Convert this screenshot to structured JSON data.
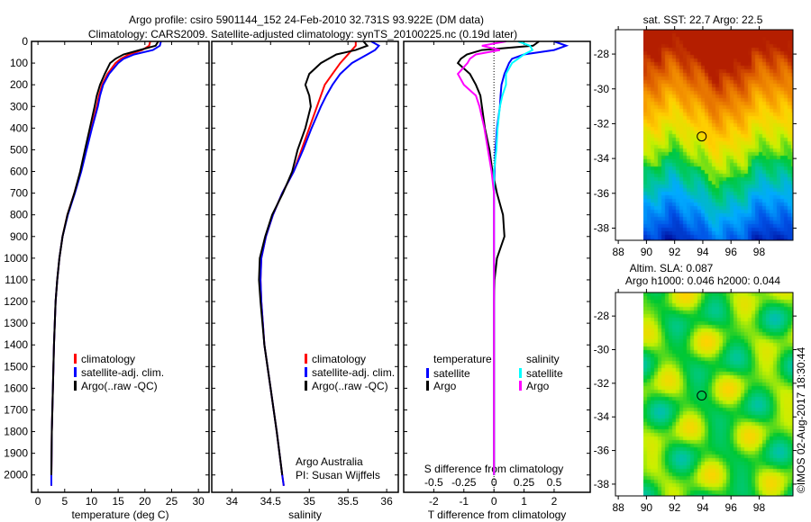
{
  "header": {
    "title_line1": "Argo profile: csiro 5901144_152 24-Feb-2010 32.731S 93.922E (DM data)",
    "title_line2": "Climatology: CARS2009. Satellite-adjusted climatology: synTS_20100225.nc (0.19d later)"
  },
  "footer": {
    "credit": "Argo Australia",
    "pi": "PI: Susan Wijffels",
    "stamp": "©IMOS 02-Aug-2017 18:30:44"
  },
  "colors": {
    "climatology": "#ff0000",
    "satellite": "#0000ff",
    "argo": "#000000",
    "sal_sat": "#00ffff",
    "sal_argo": "#ff00ff"
  },
  "chart_data": [
    {
      "type": "line",
      "name": "temperature",
      "xlabel": "temperature (deg C)",
      "ylabel": "",
      "xlim": [
        -1.2,
        32
      ],
      "ylim": [
        0,
        2080
      ],
      "xticks": [
        0,
        5,
        10,
        15,
        20,
        25,
        30
      ],
      "yticks": [
        0,
        100,
        200,
        300,
        400,
        500,
        600,
        700,
        800,
        900,
        1000,
        1100,
        1200,
        1300,
        1400,
        1500,
        1600,
        1700,
        1800,
        1900,
        2000
      ],
      "depth": [
        0,
        20,
        40,
        60,
        80,
        100,
        150,
        200,
        250,
        300,
        400,
        500,
        600,
        700,
        800,
        900,
        1000,
        1100,
        1200,
        1400,
        1600,
        1800,
        2000,
        2050
      ],
      "legend": [
        "climatology",
        "satellite-adj. clim.",
        "Argo(..raw -QC)"
      ],
      "series": [
        {
          "name": "climatology",
          "color": "#ff0000",
          "values": [
            21,
            20.8,
            19.5,
            17,
            15.5,
            14.5,
            13,
            12,
            11.4,
            11,
            10,
            9,
            8,
            6.8,
            5.5,
            4.6,
            4,
            3.6,
            3.3,
            3,
            2.8,
            2.6,
            2.5,
            2.5
          ]
        },
        {
          "name": "satellite-adj. clim.",
          "color": "#0000ff",
          "values": [
            23,
            22.8,
            21.5,
            18,
            16,
            15,
            13.3,
            12.2,
            11.6,
            11.2,
            10.1,
            9.1,
            8.1,
            6.9,
            5.6,
            4.6,
            4,
            3.6,
            3.3,
            3,
            2.8,
            2.6,
            2.5,
            2.5
          ]
        },
        {
          "name": "Argo(..raw -QC)",
          "color": "#000000",
          "values": [
            22.5,
            22,
            19,
            16,
            14.5,
            13.5,
            12.5,
            11.6,
            11,
            10.6,
            9.7,
            8.8,
            7.9,
            6.8,
            5.5,
            4.6,
            4,
            3.6,
            3.3,
            3,
            2.8,
            2.6,
            2.5,
            null
          ]
        }
      ]
    },
    {
      "type": "line",
      "name": "salinity",
      "xlabel": "salinity",
      "xlim": [
        33.74,
        36.15
      ],
      "ylim": [
        0,
        2080
      ],
      "xticks": [
        34,
        34.5,
        35,
        35.5,
        36
      ],
      "depth": [
        0,
        20,
        40,
        60,
        80,
        100,
        150,
        200,
        250,
        300,
        400,
        500,
        600,
        700,
        800,
        900,
        1000,
        1100,
        1200,
        1400,
        1600,
        1800,
        2000,
        2050
      ],
      "legend": [
        "climatology",
        "satellite-adj. clim.",
        "Argo(..raw -QC)"
      ],
      "series": [
        {
          "name": "climatology",
          "color": "#ff0000",
          "values": [
            35.6,
            35.6,
            35.55,
            35.5,
            35.45,
            35.4,
            35.3,
            35.2,
            35.15,
            35.1,
            35.0,
            34.9,
            34.8,
            34.65,
            34.53,
            34.44,
            34.38,
            34.37,
            34.38,
            34.42,
            34.5,
            34.58,
            34.65,
            34.67
          ]
        },
        {
          "name": "satellite-adj. clim.",
          "color": "#0000ff",
          "values": [
            35.8,
            35.9,
            35.85,
            35.75,
            35.65,
            35.55,
            35.4,
            35.3,
            35.22,
            35.15,
            35.03,
            34.92,
            34.8,
            34.65,
            34.53,
            34.44,
            34.38,
            34.37,
            34.38,
            34.42,
            34.5,
            34.58,
            34.65,
            34.67
          ]
        },
        {
          "name": "Argo(..raw -QC)",
          "color": "#000000",
          "values": [
            35.7,
            35.75,
            35.6,
            35.35,
            35.25,
            35.15,
            35.0,
            34.95,
            35.0,
            35.02,
            34.95,
            34.85,
            34.78,
            34.66,
            34.52,
            34.43,
            34.36,
            34.35,
            34.37,
            34.42,
            34.5,
            34.58,
            34.65,
            null
          ]
        }
      ]
    },
    {
      "type": "line",
      "name": "differences",
      "xlabel": "T difference from climatology",
      "x2label": "S difference from climatology",
      "xlim": [
        -3,
        3.2
      ],
      "ylim": [
        0,
        2080
      ],
      "xticks": [
        -2,
        -1,
        0,
        1,
        2
      ],
      "xtick_labels": [
        "-2",
        "-1",
        "0",
        "1",
        "2"
      ],
      "x2ticks": [
        -0.5,
        -0.25,
        0,
        0.25,
        0.5
      ],
      "x2tick_labels": [
        "-0.5",
        "-0.25",
        "0",
        "0.25",
        "0.5"
      ],
      "depth": [
        0,
        20,
        40,
        60,
        80,
        100,
        150,
        200,
        250,
        300,
        400,
        500,
        600,
        700,
        800,
        900,
        1000,
        1100,
        1200,
        1400,
        1600,
        1800,
        2000
      ],
      "legend_temperature": {
        "title": "temperature",
        "items": [
          "satellite",
          "Argo"
        ]
      },
      "legend_salinity": {
        "title": "salinity",
        "items": [
          "satellite",
          "Argo"
        ]
      },
      "series": [
        {
          "name": "T satellite",
          "color": "#0000ff",
          "values": [
            2,
            2.4,
            2.0,
            1.0,
            0.6,
            0.5,
            0.35,
            0.25,
            0.22,
            0.2,
            0.1,
            0.05,
            0.02,
            0,
            0,
            0,
            0,
            0,
            0,
            0,
            0,
            0,
            0
          ]
        },
        {
          "name": "T Argo",
          "color": "#000000",
          "values": [
            1.5,
            1.3,
            -0.4,
            -0.9,
            -1.1,
            -1.2,
            -0.8,
            -0.6,
            -0.45,
            -0.4,
            -0.3,
            -0.15,
            -0.05,
            0.1,
            0.3,
            0.35,
            0.1,
            0.02,
            0,
            0,
            0,
            0,
            0
          ]
        },
        {
          "name": "S satellite",
          "color": "#00ffff",
          "values": [
            0.2,
            0.3,
            0.32,
            0.25,
            0.2,
            0.15,
            0.1,
            0.1,
            0.07,
            0.05,
            0.03,
            0.02,
            0,
            0,
            0,
            0,
            0,
            0,
            0,
            0,
            0,
            0,
            0
          ]
        },
        {
          "name": "S Argo",
          "color": "#ff00ff",
          "values": [
            0.1,
            -0.1,
            0.05,
            -0.15,
            -0.2,
            -0.22,
            -0.3,
            -0.25,
            -0.15,
            -0.12,
            -0.08,
            -0.05,
            -0.02,
            0,
            0,
            0,
            0,
            0,
            0,
            0,
            0,
            0,
            0
          ]
        }
      ]
    },
    {
      "type": "heatmap",
      "name": "sst-map",
      "title": "sat. SST: 22.7 Argo: 22.5",
      "xlim": [
        87.8,
        100.4
      ],
      "ylim": [
        -38.7,
        -26.6
      ],
      "xticks": [
        88,
        90,
        92,
        94,
        96,
        98
      ],
      "yticks": [
        -28,
        -30,
        -32,
        -34,
        -36,
        -38
      ],
      "marker": {
        "lon": 93.922,
        "lat": -32.731
      }
    },
    {
      "type": "heatmap",
      "name": "sla-map",
      "title_line1": "Altim. SLA: 0.087",
      "title_line2": "Argo h1000: 0.046 h2000: 0.044",
      "xlim": [
        87.8,
        100.4
      ],
      "ylim": [
        -38.7,
        -26.6
      ],
      "xticks": [
        88,
        90,
        92,
        94,
        96,
        98
      ],
      "yticks": [
        -28,
        -30,
        -32,
        -34,
        -36,
        -38
      ],
      "marker": {
        "lon": 93.922,
        "lat": -32.731
      }
    }
  ]
}
